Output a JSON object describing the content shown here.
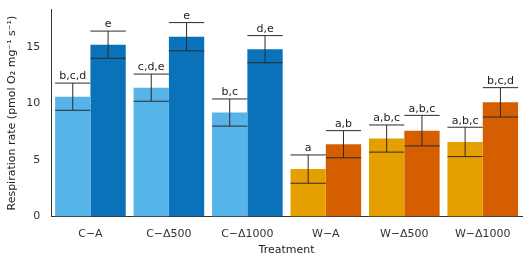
{
  "chart_data": {
    "type": "bar",
    "y_label": "Respiration rate (pmol O₂ mg⁻¹ s⁻¹)",
    "x_label": "Treatment",
    "categories": [
      "C−A",
      "C−Δ500",
      "C−Δ1000",
      "W−A",
      "W−Δ500",
      "W−Δ1000"
    ],
    "series": [
      {
        "colors": [
          "#56b4e9",
          "#56b4e9",
          "#56b4e9",
          "#e69f00",
          "#e69f00",
          "#e69f00"
        ],
        "values": [
          10.6,
          11.4,
          9.2,
          4.2,
          6.9,
          6.6
        ],
        "errors": [
          1.2,
          1.2,
          1.2,
          1.25,
          1.2,
          1.3
        ],
        "letters": [
          "b,c,d",
          "c,d,e",
          "b,c",
          "a",
          "a,b,c",
          "a,b,c"
        ]
      },
      {
        "colors": [
          "#0a72b8",
          "#0a72b8",
          "#0a72b8",
          "#d55e00",
          "#d55e00",
          "#d55e00"
        ],
        "values": [
          15.2,
          15.9,
          14.8,
          6.4,
          7.6,
          10.1
        ],
        "errors": [
          1.2,
          1.25,
          1.2,
          1.2,
          1.35,
          1.3
        ],
        "letters": [
          "e",
          "e",
          "d,e",
          "a,b",
          "a,b,c",
          "b,c,d"
        ]
      }
    ],
    "ylim": [
      0,
      18.3
    ],
    "yticks": [
      0,
      5,
      10,
      15
    ],
    "grid": false
  }
}
